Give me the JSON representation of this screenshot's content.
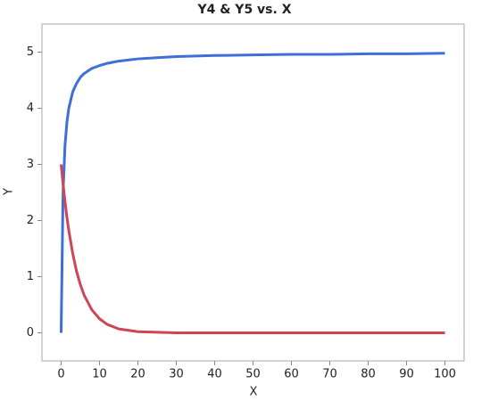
{
  "chart_data": {
    "type": "line",
    "title": "Y4 & Y5 vs. X",
    "x_label": "X",
    "y_label": "Y",
    "x": [
      0,
      0.5,
      1,
      1.5,
      2,
      3,
      4,
      5,
      6,
      8,
      10,
      12,
      15,
      20,
      25,
      30,
      40,
      50,
      60,
      70,
      80,
      90,
      100
    ],
    "series": [
      {
        "color": "#3d6fd8",
        "values": [
          0,
          2.5,
          3.33,
          3.75,
          4,
          4.29,
          4.44,
          4.55,
          4.62,
          4.71,
          4.76,
          4.8,
          4.84,
          4.88,
          4.9,
          4.92,
          4.94,
          4.95,
          4.96,
          4.96,
          4.97,
          4.97,
          4.98
        ]
      },
      {
        "color": "#d04455",
        "values": [
          3,
          2.65,
          2.34,
          2.06,
          1.82,
          1.42,
          1.1,
          0.86,
          0.67,
          0.41,
          0.25,
          0.15,
          0.07,
          0.02,
          0.01,
          0,
          0,
          0,
          0,
          0,
          0,
          0,
          0
        ]
      }
    ],
    "xlim": [
      -5,
      105
    ],
    "xticks": [
      0,
      10,
      20,
      30,
      40,
      50,
      60,
      70,
      80,
      90,
      100
    ],
    "ylim": [
      -0.5,
      5.5
    ],
    "yticks": [
      0,
      1,
      2,
      3,
      4,
      5
    ]
  }
}
